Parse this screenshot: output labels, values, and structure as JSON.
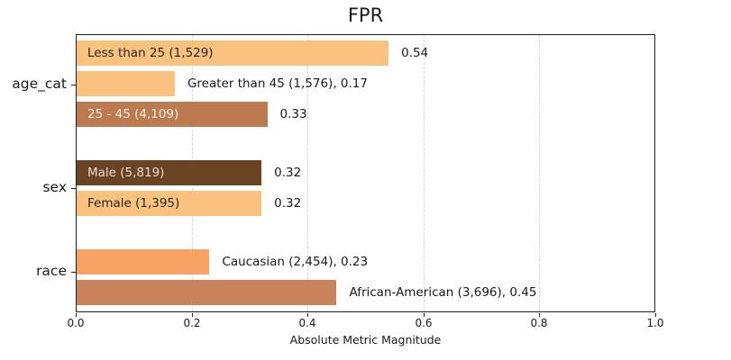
{
  "chart_data": {
    "type": "bar",
    "orientation": "horizontal",
    "title": "FPR",
    "xlabel": "Absolute Metric Magnitude",
    "xlim": [
      0.0,
      1.0
    ],
    "xtick_labels": [
      "0.0",
      "0.2",
      "0.4",
      "0.6",
      "0.8",
      "1.0"
    ],
    "grid": {
      "axis": "x",
      "style": "dashed",
      "color": "#d4d4d4",
      "positions": [
        0.2,
        0.4,
        0.6,
        0.8
      ]
    },
    "background": "#ffffff",
    "groups": [
      {
        "category": "age_cat",
        "items": [
          {
            "name": "Less than 25",
            "count": "1,529",
            "value": 0.54,
            "color": "#FBC17E",
            "text_color": "#262626",
            "text_in_bar": "Less than 25 (1,529)",
            "text_right": "0.54"
          },
          {
            "name": "Greater than 45",
            "count": "1,576",
            "value": 0.17,
            "color": "#FBC17E",
            "text_color": "#262626",
            "text_in_bar": "",
            "text_right": "Greater than 45 (1,576), 0.17"
          },
          {
            "name": "25 - 45",
            "count": "4,109",
            "value": 0.33,
            "color": "#BE7A4F",
            "text_color": "#F6EEE6",
            "text_in_bar": "25 - 45 (4,109)",
            "text_right": "0.33"
          }
        ]
      },
      {
        "category": "sex",
        "items": [
          {
            "name": "Male",
            "count": "5,819",
            "value": 0.32,
            "color": "#6B4423",
            "text_color": "#E6DCD2",
            "text_in_bar": "Male (5,819)",
            "text_right": "0.32"
          },
          {
            "name": "Female",
            "count": "1,395",
            "value": 0.32,
            "color": "#FBC17E",
            "text_color": "#262626",
            "text_in_bar": "Female (1,395)",
            "text_right": "0.32"
          }
        ]
      },
      {
        "category": "race",
        "items": [
          {
            "name": "Caucasian",
            "count": "2,454",
            "value": 0.23,
            "color": "#F9A265",
            "text_color": "#262626",
            "text_in_bar": "",
            "text_right": "Caucasian (2,454), 0.23"
          },
          {
            "name": "African-American",
            "count": "3,696",
            "value": 0.45,
            "color": "#C9825A",
            "text_color": "#262626",
            "text_in_bar": "",
            "text_right": "African-American (3,696), 0.45"
          }
        ]
      }
    ]
  }
}
